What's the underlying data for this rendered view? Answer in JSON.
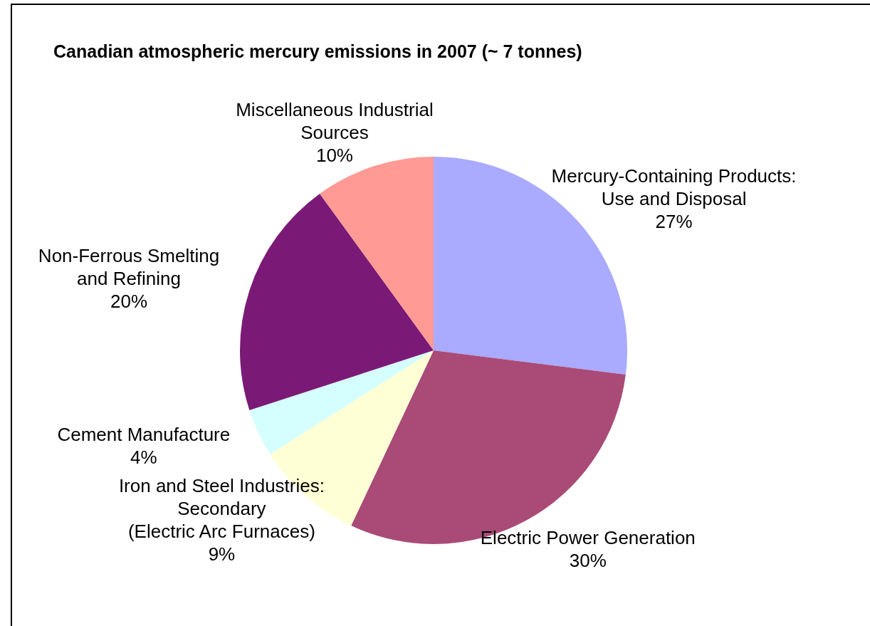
{
  "chart_data": {
    "type": "pie",
    "title": "Canadian atmospheric mercury emissions in 2007 (~ 7 tonnes)",
    "categories": [
      "Mercury-Containing Products:\nUse and Disposal",
      "Electric Power Generation",
      "Iron and Steel Industries:\nSecondary\n(Electric Arc Furnaces)",
      "Cement Manufacture",
      "Non-Ferrous Smelting\nand Refining",
      "Miscellaneous Industrial\nSources"
    ],
    "values": [
      27,
      30,
      9,
      4,
      20,
      10
    ],
    "value_labels": [
      "27%",
      "30%",
      "9%",
      "4%",
      "20%",
      "10%"
    ],
    "colors": [
      "#aaaaff",
      "#aa4a77",
      "#ffffd5",
      "#d5ffff",
      "#7b1a76",
      "#ff9a94"
    ],
    "legend": false
  }
}
